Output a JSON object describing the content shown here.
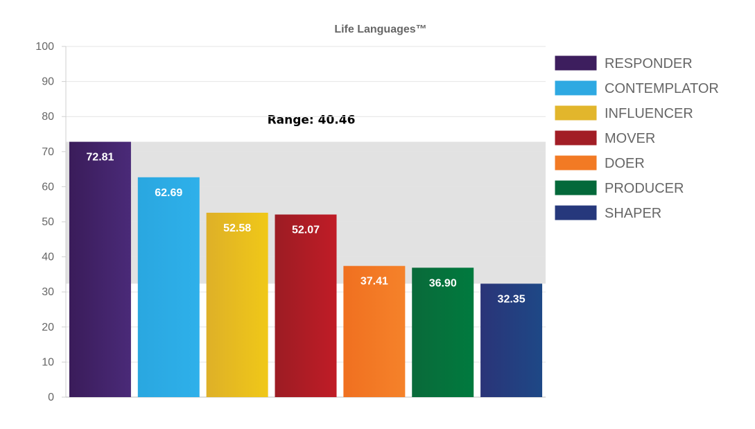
{
  "chart_data": {
    "type": "bar",
    "title": "Life Languages™",
    "categories": [
      "RESPONDER",
      "CONTEMPLATOR",
      "INFLUENCER",
      "MOVER",
      "DOER",
      "PRODUCER",
      "SHAPER"
    ],
    "values": [
      72.81,
      62.69,
      52.58,
      52.07,
      37.41,
      36.9,
      32.35
    ],
    "value_labels": [
      "72.81",
      "62.69",
      "52.58",
      "52.07",
      "37.41",
      "36.90",
      "32.35"
    ],
    "colors": [
      [
        "#3a1c5a",
        "#4a2a78"
      ],
      [
        "#2aa7e0",
        "#2eb0ea"
      ],
      [
        "#deb028",
        "#f0c818"
      ],
      [
        "#9c1c24",
        "#c01c26"
      ],
      [
        "#f07020",
        "#f5822a"
      ],
      [
        "#0a6a3a",
        "#007a3e"
      ],
      [
        "#2a3478",
        "#1e4886"
      ]
    ],
    "legend_colors": [
      "#3d1e5e",
      "#2ea9e2",
      "#e2b62c",
      "#a21e26",
      "#f27a24",
      "#04693a",
      "#26387c"
    ],
    "ylim": [
      0,
      100
    ],
    "yticks": [
      0,
      10,
      20,
      30,
      40,
      50,
      60,
      70,
      80,
      90,
      100
    ],
    "ytick_labels": [
      "0",
      "10",
      "20",
      "30",
      "40",
      "50",
      "60",
      "70",
      "80",
      "90",
      "100"
    ],
    "range": {
      "label": "Range: 40.46",
      "from": 32.35,
      "to": 72.81,
      "color": "#e2e2e2"
    },
    "grid": true,
    "legend": "right"
  }
}
